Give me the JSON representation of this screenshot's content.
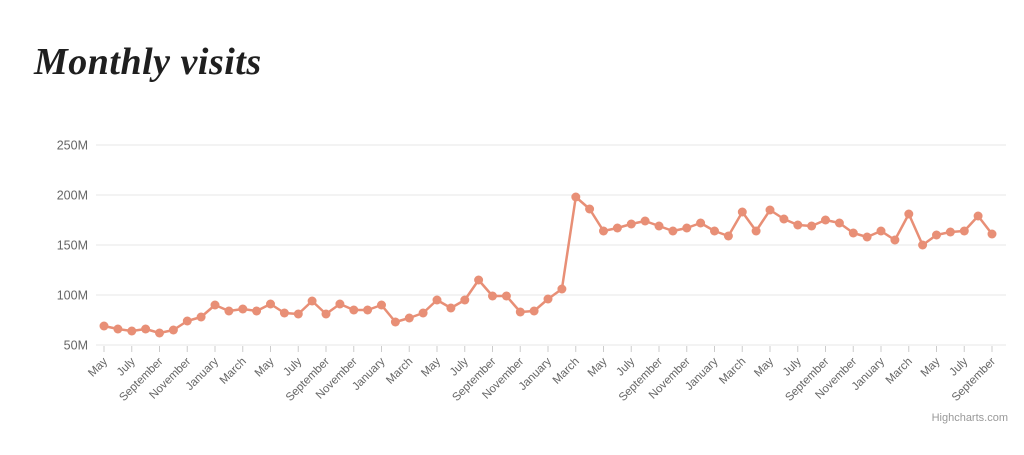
{
  "chart": {
    "title": "Monthly visits",
    "credit": "Highcharts.com"
  },
  "chart_data": {
    "type": "line",
    "title": "Monthly visits",
    "legend": false,
    "grid": true,
    "series_color": "#E88F76",
    "grid_color": "#E7E7E7",
    "tick_color": "#CCCCCC",
    "axis_label_color": "#666666",
    "ylim": [
      50,
      250
    ],
    "yticks": [
      50,
      100,
      150,
      200,
      250
    ],
    "ytick_labels": [
      "50M",
      "100M",
      "150M",
      "200M",
      "250M"
    ],
    "x_label_step": 2,
    "x_labels": [
      "May",
      "July",
      "September",
      "November",
      "January",
      "March",
      "May",
      "July",
      "September",
      "November",
      "January",
      "March",
      "May",
      "July",
      "September",
      "November",
      "January",
      "March",
      "May",
      "July",
      "September",
      "November",
      "January",
      "March",
      "May",
      "July",
      "September",
      "November",
      "January",
      "March",
      "May",
      "July",
      "September"
    ],
    "values": [
      69,
      66,
      64,
      66,
      62,
      65,
      74,
      78,
      90,
      84,
      86,
      84,
      91,
      82,
      81,
      94,
      81,
      91,
      85,
      85,
      90,
      73,
      77,
      82,
      95,
      87,
      95,
      115,
      99,
      99,
      83,
      84,
      96,
      106,
      198,
      186,
      164,
      167,
      171,
      174,
      169,
      164,
      167,
      172,
      164,
      159,
      183,
      164,
      185,
      176,
      170,
      169,
      175,
      172,
      162,
      158,
      164,
      155,
      181,
      150,
      160,
      163,
      164,
      179,
      161
    ],
    "units": "M"
  }
}
